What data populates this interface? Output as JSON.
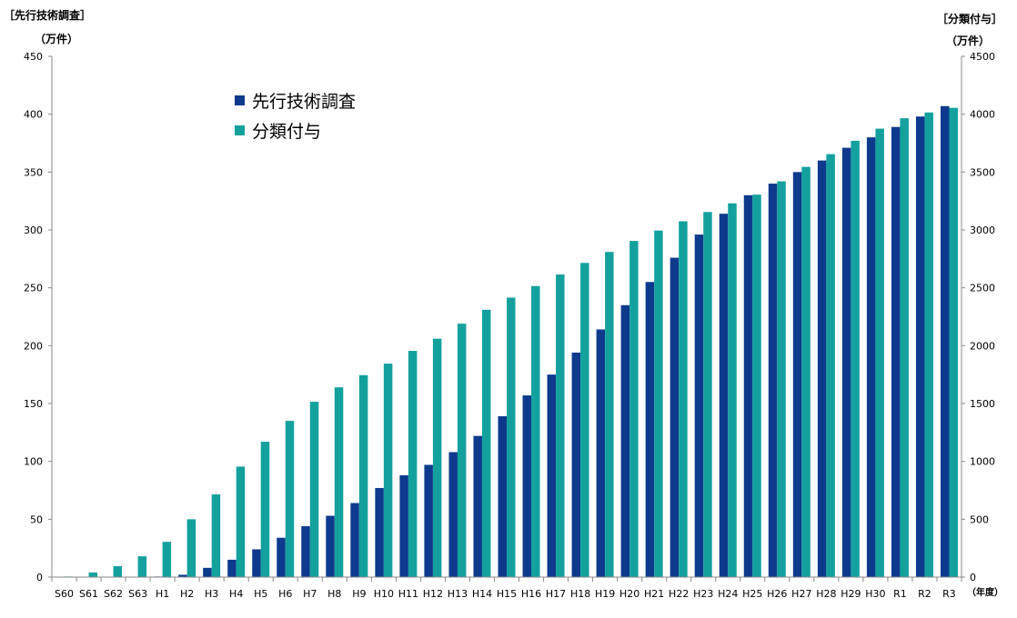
{
  "chart_data": {
    "type": "bar",
    "categories": [
      "S60",
      "S61",
      "S62",
      "S63",
      "H1",
      "H2",
      "H3",
      "H4",
      "H5",
      "H6",
      "H7",
      "H8",
      "H9",
      "H10",
      "H11",
      "H12",
      "H13",
      "H14",
      "H15",
      "H16",
      "H17",
      "H18",
      "H19",
      "H20",
      "H21",
      "H22",
      "H23",
      "H24",
      "H25",
      "H26",
      "H27",
      "H28",
      "H29",
      "H30",
      "R1",
      "R2",
      "R3"
    ],
    "xlabel": "（年度）",
    "y_left": {
      "label_line1": "［先行技術調査］",
      "label_line2": "（万件）",
      "ylim": [
        0,
        450
      ],
      "ticks": [
        0,
        50,
        100,
        150,
        200,
        250,
        300,
        350,
        400,
        450
      ]
    },
    "y_right": {
      "label_line1": "［分類付与］",
      "label_line2": "（万件）",
      "ylim": [
        0,
        4500
      ],
      "ticks": [
        0,
        500,
        1000,
        1500,
        2000,
        2500,
        3000,
        3500,
        4000,
        4500
      ]
    },
    "series": [
      {
        "name": "先行技術調査",
        "axis": "left",
        "color": "#0d3a8c",
        "values": [
          0,
          0,
          0,
          0,
          0.5,
          2,
          8,
          15,
          24,
          34,
          44,
          53,
          64,
          77,
          88,
          97,
          108,
          122,
          139,
          157,
          175,
          194,
          214,
          235,
          255,
          276,
          296,
          314,
          330,
          340,
          350,
          360,
          371,
          380,
          389,
          398,
          407
        ]
      },
      {
        "name": "分類付与",
        "axis": "right",
        "color": "#14a19e",
        "values": [
          5,
          40,
          95,
          180,
          305,
          500,
          715,
          955,
          1170,
          1350,
          1515,
          1640,
          1745,
          1845,
          1955,
          2060,
          2190,
          2310,
          2415,
          2515,
          2615,
          2715,
          2810,
          2905,
          2995,
          3075,
          3155,
          3230,
          3305,
          3420,
          3545,
          3655,
          3770,
          3875,
          3965,
          4015,
          4055
        ]
      }
    ],
    "legend": {
      "position": "top-left"
    },
    "grid": false
  }
}
